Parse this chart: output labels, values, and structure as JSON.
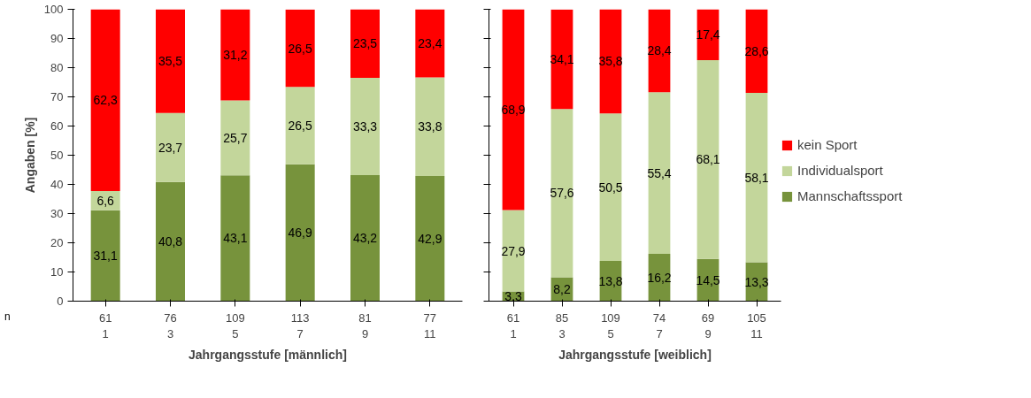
{
  "chart_data": [
    {
      "type": "bar",
      "stacked": true,
      "xlabel": "Jahrgangsstufe [männlich]",
      "ylabel": "Angaben [%]",
      "categories": [
        "61\n1",
        "76\n3",
        "109\n5",
        "113\n7",
        "81\n9",
        "77\n11"
      ],
      "ylim": [
        0,
        100
      ],
      "yticks": [
        0,
        10,
        20,
        30,
        40,
        50,
        60,
        70,
        80,
        90,
        100
      ],
      "grid": false,
      "legend": false,
      "annotations": [
        "n"
      ],
      "series": [
        {
          "color": "#77933c",
          "values": [
            31.1,
            40.8,
            43.1,
            46.9,
            43.2,
            42.9
          ],
          "value_labels": [
            "31,1",
            "40,8",
            "43,1",
            "46,9",
            "43,2",
            "42,9"
          ]
        },
        {
          "color": "#c3d69b",
          "values": [
            6.6,
            23.7,
            25.7,
            26.5,
            33.3,
            33.8
          ],
          "value_labels": [
            "6,6",
            "23,7",
            "25,7",
            "26,5",
            "33,3",
            "33,8"
          ]
        },
        {
          "color": "#ff0000",
          "values": [
            62.3,
            35.5,
            31.2,
            26.5,
            23.5,
            23.4
          ],
          "value_labels": [
            "62,3",
            "35,5",
            "31,2",
            "26,5",
            "23,5",
            "23,4"
          ]
        }
      ]
    },
    {
      "type": "bar",
      "stacked": true,
      "xlabel": "Jahrgangsstufe [weiblich]",
      "categories": [
        "61\n1",
        "85\n3",
        "109\n5",
        "74\n7",
        "69\n9",
        "105\n11"
      ],
      "ylim": [
        0,
        100
      ],
      "yticks": [
        0,
        10,
        20,
        30,
        40,
        50,
        60,
        70,
        80,
        90,
        100
      ],
      "tick_labels": "x",
      "grid": false,
      "legend": "right",
      "series": [
        {
          "name": "Mannschaftssport",
          "color": "#77933c",
          "values": [
            3.3,
            8.2,
            13.8,
            16.2,
            14.5,
            13.3
          ],
          "value_labels": [
            "3,3",
            "8,2",
            "13,8",
            "16,2",
            "14,5",
            "13,3"
          ]
        },
        {
          "name": "Individualsport",
          "color": "#c3d69b",
          "values": [
            27.9,
            57.6,
            50.5,
            55.4,
            68.1,
            58.1
          ],
          "value_labels": [
            "27,9",
            "57,6",
            "50,5",
            "55,4",
            "68,1",
            "58,1"
          ]
        },
        {
          "name": "kein Sport",
          "color": "#ff0000",
          "values": [
            68.9,
            34.1,
            35.8,
            28.4,
            17.4,
            28.6
          ],
          "value_labels": [
            "68,9",
            "34,1",
            "35,8",
            "28,4",
            "17,4",
            "28,6"
          ]
        }
      ]
    }
  ]
}
